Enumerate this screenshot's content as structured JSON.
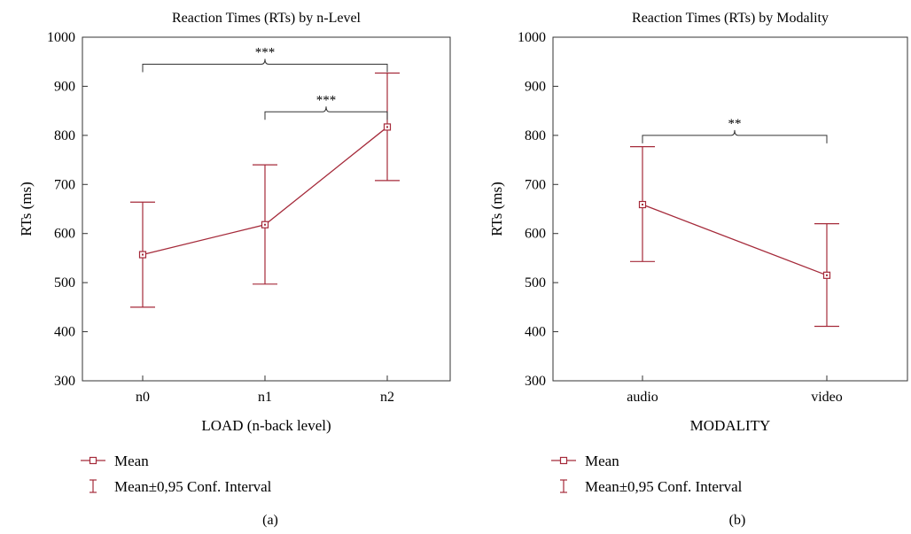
{
  "chart_data": [
    {
      "type": "line",
      "title": "Reaction Times (RTs) by n-Level",
      "xlabel": "LOAD (n-back level)",
      "ylabel": "RTs (ms)",
      "ylim": [
        300,
        1000
      ],
      "yticks": [
        "300",
        "400",
        "500",
        "600",
        "700",
        "800",
        "900",
        "1000"
      ],
      "categories": [
        "n0",
        "n1",
        "n2"
      ],
      "series": [
        {
          "name": "Mean",
          "values": [
            557,
            618,
            817
          ],
          "ci_lower": [
            450,
            497,
            708
          ],
          "ci_upper": [
            664,
            740,
            927
          ]
        }
      ],
      "significance": [
        {
          "from": 0,
          "to": 2,
          "label": "***",
          "y": 945
        },
        {
          "from": 1,
          "to": 2,
          "label": "***",
          "y": 848
        }
      ],
      "legend": {
        "mean_label": "Mean",
        "ci_label": "Mean±0,95 Conf. Interval",
        "placement": "bottom-left"
      },
      "caption": "(a)",
      "color": "#a52a3a"
    },
    {
      "type": "line",
      "title": "Reaction Times (RTs) by Modality",
      "xlabel": "MODALITY",
      "ylabel": "RTs (ms)",
      "ylim": [
        300,
        1000
      ],
      "yticks": [
        "300",
        "400",
        "500",
        "600",
        "700",
        "800",
        "900",
        "1000"
      ],
      "categories": [
        "audio",
        "video"
      ],
      "series": [
        {
          "name": "Mean",
          "values": [
            659,
            515
          ],
          "ci_lower": [
            543,
            411
          ],
          "ci_upper": [
            777,
            620
          ]
        }
      ],
      "significance": [
        {
          "from": 0,
          "to": 1,
          "label": "**",
          "y": 800
        }
      ],
      "legend": {
        "mean_label": "Mean",
        "ci_label": "Mean±0,95 Conf. Interval",
        "placement": "bottom-left"
      },
      "caption": "(b)",
      "color": "#a52a3a"
    }
  ]
}
